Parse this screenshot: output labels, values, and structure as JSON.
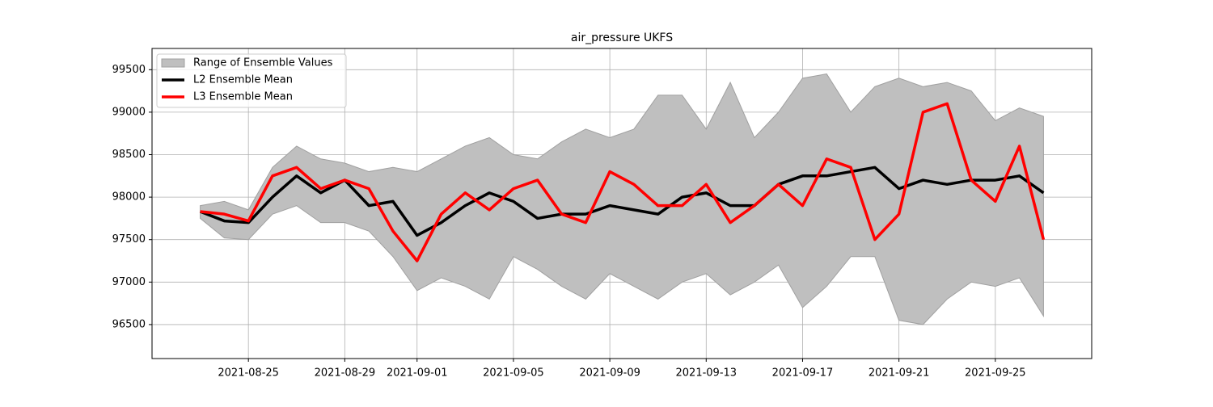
{
  "chart_data": {
    "type": "line",
    "title": "air_pressure UKFS",
    "x": [
      "2021-08-23",
      "2021-08-24",
      "2021-08-25",
      "2021-08-26",
      "2021-08-27",
      "2021-08-28",
      "2021-08-29",
      "2021-08-30",
      "2021-08-31",
      "2021-09-01",
      "2021-09-02",
      "2021-09-03",
      "2021-09-04",
      "2021-09-05",
      "2021-09-06",
      "2021-09-07",
      "2021-09-08",
      "2021-09-09",
      "2021-09-10",
      "2021-09-11",
      "2021-09-12",
      "2021-09-13",
      "2021-09-14",
      "2021-09-15",
      "2021-09-16",
      "2021-09-17",
      "2021-09-18",
      "2021-09-19",
      "2021-09-20",
      "2021-09-21",
      "2021-09-22",
      "2021-09-23",
      "2021-09-24",
      "2021-09-25",
      "2021-09-26",
      "2021-09-27"
    ],
    "band": {
      "name": "Range of Ensemble Values",
      "color": "#bfbfbf",
      "edge_color": "#a0a0a0",
      "high": [
        97900,
        97950,
        97850,
        98350,
        98600,
        98450,
        98400,
        98300,
        98350,
        98300,
        98450,
        98600,
        98700,
        98500,
        98450,
        98650,
        98800,
        98700,
        98800,
        99200,
        99200,
        98800,
        99350,
        98700,
        99000,
        99400,
        99450,
        99000,
        99300,
        99400,
        99300,
        99350,
        99250,
        98900,
        99050,
        98950
      ],
      "low": [
        97750,
        97520,
        97500,
        97800,
        97900,
        97700,
        97700,
        97600,
        97300,
        96900,
        97050,
        96950,
        96800,
        97300,
        97150,
        96950,
        96800,
        97100,
        96950,
        96800,
        97000,
        97100,
        96850,
        97000,
        97200,
        96700,
        96950,
        97300,
        97300,
        96550,
        96500,
        96800,
        97000,
        96950,
        97050,
        96600
      ]
    },
    "series": [
      {
        "name": "L2 Ensemble Mean",
        "color": "#000000",
        "values": [
          97830,
          97720,
          97700,
          98000,
          98250,
          98050,
          98200,
          97900,
          97950,
          97550,
          97700,
          97900,
          98050,
          97950,
          97750,
          97800,
          97800,
          97900,
          97850,
          97800,
          98000,
          98050,
          97900,
          97900,
          98150,
          98250,
          98250,
          98300,
          98350,
          98100,
          98200,
          98150,
          98200,
          98200,
          98250,
          98050
        ]
      },
      {
        "name": "L3 Ensemble Mean",
        "color": "#ff0000",
        "values": [
          97830,
          97800,
          97720,
          98250,
          98350,
          98100,
          98200,
          98100,
          97600,
          97250,
          97800,
          98050,
          97850,
          98100,
          98200,
          97800,
          97700,
          98300,
          98150,
          97900,
          97900,
          98150,
          97700,
          97900,
          98150,
          97900,
          98450,
          98350,
          97500,
          97800,
          99000,
          99100,
          98200,
          97950,
          98600,
          97500
        ]
      }
    ],
    "xlim": [
      "2021-08-21",
      "2021-09-29"
    ],
    "xticks": [
      "2021-08-25",
      "2021-08-29",
      "2021-09-01",
      "2021-09-05",
      "2021-09-09",
      "2021-09-13",
      "2021-09-17",
      "2021-09-21",
      "2021-09-25"
    ],
    "ylim": [
      96100,
      99750
    ],
    "yticks": [
      96500,
      97000,
      97500,
      98000,
      98500,
      99000,
      99500
    ],
    "grid": true,
    "legend": "upper left"
  }
}
